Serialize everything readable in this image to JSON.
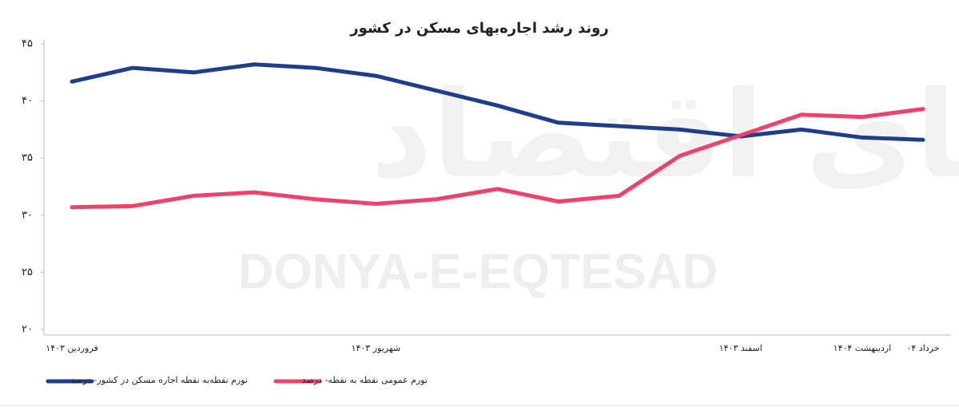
{
  "chart_data": {
    "type": "line",
    "title": "روند رشد اجاره‌بهای مسکن در کشور",
    "watermark": "DONYA-E-EQTESAD",
    "watermark_logo": "دنیای اقتصاد",
    "categories": [
      "فروردین ۱۴۰۳",
      null,
      null,
      null,
      null,
      "شهریور ۱۴۰۳",
      null,
      null,
      null,
      null,
      null,
      "اسفند ۱۴۰۳",
      null,
      "اردیبهشت ۱۴۰۴",
      "خرداد ۰۴"
    ],
    "series": [
      {
        "name": "تورم نقطه‌به نقطه اجاره مسکن در کشور- درصد",
        "color": "#1f3d8a",
        "values": [
          41.7,
          42.9,
          42.5,
          43.2,
          42.9,
          42.2,
          40.9,
          39.6,
          38.1,
          37.8,
          37.5,
          36.9,
          37.5,
          36.8,
          36.6
        ]
      },
      {
        "name": "تورم عمومی نقطه به نقطه- درصد",
        "color": "#f0416b",
        "values": [
          30.7,
          30.8,
          31.7,
          32.0,
          31.4,
          31.0,
          31.4,
          32.3,
          31.2,
          31.7,
          35.2,
          37.0,
          38.8,
          38.6,
          39.3
        ]
      }
    ],
    "ylim": [
      20,
      45
    ],
    "yticks": [
      {
        "value": 20,
        "label": "۲۰"
      },
      {
        "value": 25,
        "label": "۲۵"
      },
      {
        "value": 30,
        "label": "۳۰"
      },
      {
        "value": 35,
        "label": "۳۵"
      },
      {
        "value": 40,
        "label": "۴۰"
      },
      {
        "value": 45,
        "label": "۴۵"
      }
    ],
    "grid": false
  }
}
